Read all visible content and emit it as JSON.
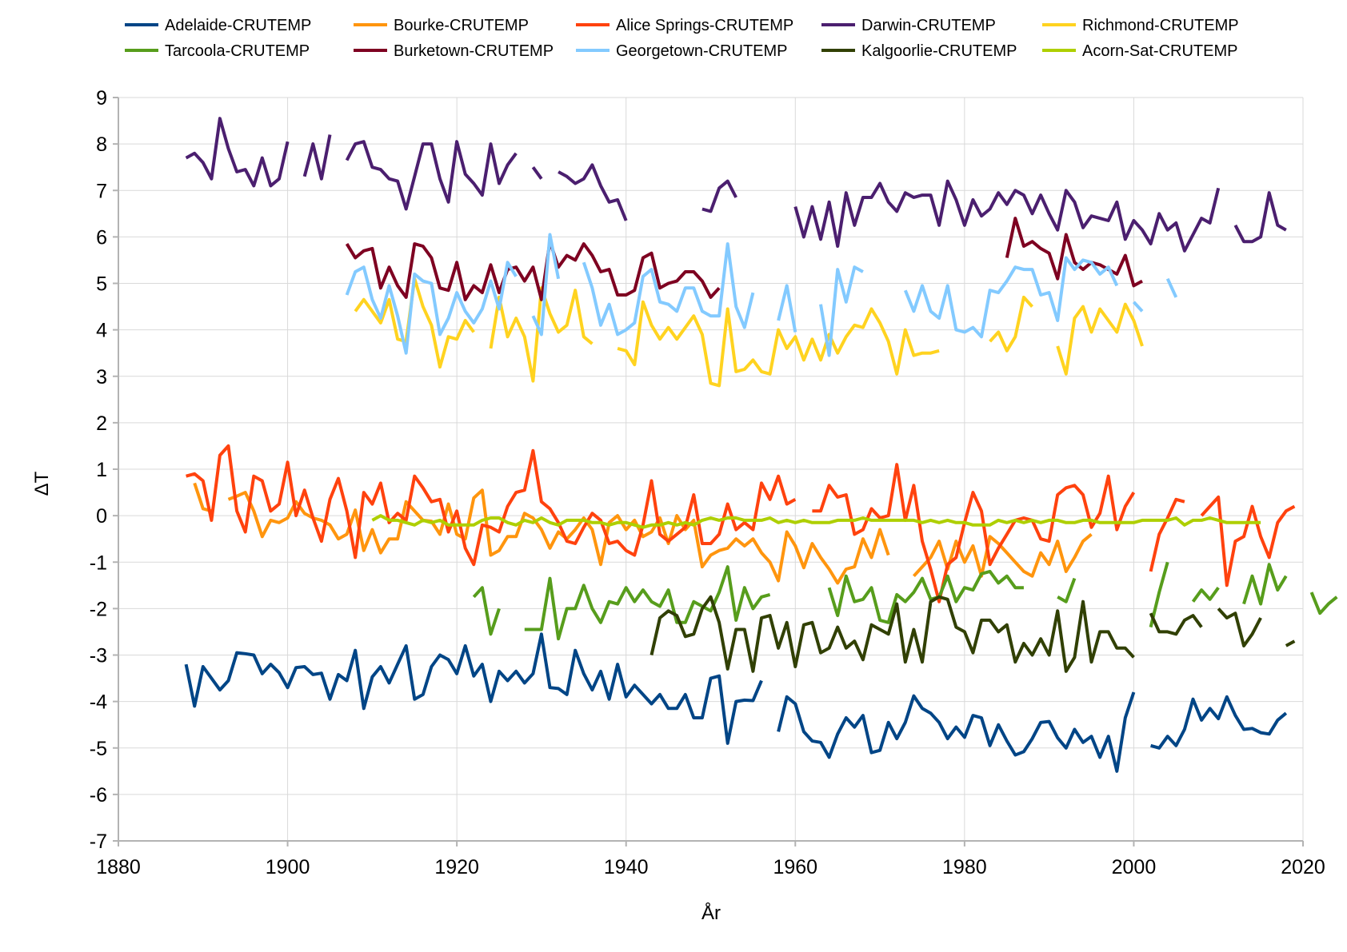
{
  "chart_data": {
    "type": "line",
    "xlabel": "År",
    "ylabel": "ΔT",
    "xlim": [
      1880,
      2020
    ],
    "ylim": [
      -7,
      9
    ],
    "x_ticks": [
      1880,
      1900,
      1920,
      1940,
      1960,
      1980,
      2000,
      2020
    ],
    "y_ticks": [
      9,
      8,
      7,
      6,
      5,
      4,
      3,
      2,
      1,
      0,
      -1,
      -2,
      -3,
      -4,
      -5,
      -6,
      -7
    ],
    "grid": true,
    "legend_position": "top",
    "series": [
      {
        "name": "Adelaide-CRUTEMP",
        "color": "#004586",
        "start": 1888,
        "values": [
          -3.2,
          -4.1,
          -3.25,
          -3.5,
          -3.75,
          -3.55,
          -2.95,
          -2.97,
          -3.0,
          -3.4,
          -3.2,
          -3.38,
          -3.7,
          -3.27,
          -3.25,
          -3.42,
          -3.39,
          -3.95,
          -3.42,
          -3.55,
          -2.9,
          -4.15,
          -3.47,
          -3.25,
          -3.6,
          -3.2,
          -2.8,
          -3.95,
          -3.85,
          -3.25,
          -3.0,
          -3.1,
          -3.4,
          -2.8,
          -3.45,
          -3.2,
          -4.0,
          -3.35,
          -3.55,
          -3.35,
          -3.6,
          -3.4,
          -2.55,
          -3.7,
          -3.72,
          -3.85,
          -2.9,
          -3.4,
          -3.75,
          -3.35,
          -3.95,
          -3.2,
          -3.9,
          -3.65,
          -3.85,
          -4.05,
          -3.85,
          -4.15,
          -4.15,
          -3.85,
          -4.35,
          -4.35,
          -3.5,
          -3.45,
          -4.9,
          -4.0,
          -3.97,
          -3.98,
          -3.55,
          null,
          -4.65,
          -3.9,
          -4.05,
          -4.65,
          -4.85,
          -4.88,
          -5.2,
          -4.7,
          -4.35,
          -4.55,
          -4.3,
          -5.1,
          -5.05,
          -4.45,
          -4.8,
          -4.45,
          -3.88,
          -4.15,
          -4.25,
          -4.45,
          -4.8,
          -4.55,
          -4.77,
          -4.3,
          -4.35,
          -4.95,
          -4.5,
          -4.85,
          -5.15,
          -5.08,
          -4.8,
          -4.45,
          -4.43,
          -4.78,
          -5.0,
          -4.6,
          -4.88,
          -4.75,
          -5.2,
          -4.75,
          -5.5,
          -4.35,
          -3.8,
          null,
          -4.95,
          -5.0,
          -4.75,
          -4.95,
          -4.6,
          -3.95,
          -4.4,
          -4.15,
          -4.37,
          -3.9,
          -4.3,
          -4.6,
          -4.58,
          -4.67,
          -4.7,
          -4.4,
          -4.25
        ]
      },
      {
        "name": "Bourke-CRUTEMP",
        "color": "#ff950e",
        "start": 1889,
        "values": [
          0.7,
          0.15,
          0.1,
          null,
          0.35,
          0.42,
          0.5,
          0.1,
          -0.45,
          -0.1,
          -0.15,
          -0.05,
          0.3,
          0.05,
          -0.05,
          -0.1,
          -0.2,
          -0.5,
          -0.4,
          0.12,
          -0.75,
          -0.3,
          -0.8,
          -0.5,
          -0.5,
          0.3,
          0.1,
          -0.1,
          -0.12,
          -0.4,
          0.25,
          -0.4,
          -0.5,
          0.38,
          0.55,
          -0.85,
          -0.75,
          -0.45,
          -0.45,
          0.05,
          -0.05,
          -0.3,
          -0.7,
          -0.35,
          -0.5,
          -0.3,
          -0.05,
          -0.3,
          -1.05,
          -0.15,
          0.0,
          -0.3,
          -0.1,
          -0.45,
          -0.35,
          -0.05,
          -0.6,
          0.0,
          -0.3,
          -0.1,
          -1.1,
          -0.85,
          -0.75,
          -0.7,
          -0.5,
          -0.65,
          -0.5,
          -0.8,
          -1.0,
          -1.4,
          -0.35,
          -0.65,
          -1.12,
          -0.6,
          -0.9,
          -1.15,
          -1.45,
          -1.15,
          -1.1,
          -0.5,
          -0.9,
          -0.3,
          -0.85,
          null,
          null,
          -1.3,
          -1.1,
          -0.9,
          -0.55,
          -1.15,
          -0.55,
          -1.0,
          -0.65,
          -1.3,
          -0.45,
          -0.6,
          -0.8,
          -1.0,
          -1.2,
          -1.3,
          -0.8,
          -1.05,
          -0.55,
          -1.2,
          -0.9,
          -0.55,
          -0.4
        ]
      },
      {
        "name": "Alice Springs-CRUTEMP",
        "color": "#ff420e",
        "start": 1888,
        "values": [
          0.85,
          0.9,
          0.75,
          -0.1,
          1.3,
          1.5,
          0.1,
          -0.35,
          0.85,
          0.75,
          0.1,
          0.25,
          1.15,
          0.0,
          0.55,
          -0.05,
          -0.55,
          0.35,
          0.8,
          0.1,
          -0.9,
          0.5,
          0.25,
          0.7,
          -0.15,
          0.05,
          -0.1,
          0.85,
          0.6,
          0.3,
          0.35,
          -0.35,
          0.1,
          -0.7,
          -1.05,
          -0.2,
          -0.25,
          -0.35,
          0.2,
          0.5,
          0.55,
          1.4,
          0.3,
          0.15,
          -0.15,
          -0.55,
          -0.6,
          -0.25,
          0.05,
          -0.1,
          -0.6,
          -0.55,
          -0.75,
          -0.85,
          -0.2,
          0.75,
          -0.4,
          -0.55,
          -0.4,
          -0.25,
          0.45,
          -0.6,
          -0.6,
          -0.4,
          0.25,
          -0.3,
          -0.15,
          -0.3,
          0.7,
          0.35,
          0.85,
          0.25,
          0.35,
          null,
          0.1,
          0.1,
          0.65,
          0.4,
          0.45,
          -0.4,
          -0.3,
          0.15,
          -0.05,
          0.0,
          1.1,
          -0.1,
          0.65,
          -0.55,
          -1.15,
          -1.85,
          -1.05,
          -0.9,
          -0.15,
          0.5,
          0.1,
          -1.05,
          -0.7,
          -0.4,
          -0.1,
          -0.05,
          -0.1,
          -0.5,
          -0.55,
          0.45,
          0.6,
          0.65,
          0.45,
          -0.25,
          0.05,
          0.85,
          -0.3,
          0.2,
          0.5,
          null,
          -1.2,
          -0.4,
          -0.05,
          0.35,
          0.3,
          null,
          0.0,
          0.2,
          0.4,
          -1.5,
          -0.55,
          -0.45,
          0.2,
          -0.45,
          -0.9,
          -0.15,
          0.1,
          0.2
        ]
      },
      {
        "name": "Darwin-CRUTEMP",
        "color": "#4b1f6f",
        "start": 1888,
        "values": [
          7.7,
          7.8,
          7.6,
          7.25,
          8.55,
          7.9,
          7.4,
          7.45,
          7.1,
          7.7,
          7.1,
          7.25,
          8.05,
          null,
          7.3,
          8.0,
          7.25,
          8.2,
          null,
          7.65,
          8.0,
          8.05,
          7.5,
          7.45,
          7.25,
          7.2,
          6.6,
          7.3,
          8.0,
          8.0,
          7.25,
          6.75,
          8.05,
          7.35,
          7.15,
          6.9,
          8.0,
          7.15,
          7.55,
          7.8,
          null,
          7.5,
          7.25,
          null,
          7.4,
          7.3,
          7.15,
          7.25,
          7.55,
          7.1,
          6.75,
          6.8,
          6.35,
          null,
          null,
          null,
          null,
          null,
          null,
          null,
          null,
          6.6,
          6.55,
          7.05,
          7.2,
          6.85,
          null,
          null,
          null,
          null,
          null,
          null,
          6.65,
          6.0,
          6.65,
          5.95,
          6.75,
          5.8,
          6.95,
          6.25,
          6.85,
          6.85,
          7.15,
          6.75,
          6.55,
          6.95,
          6.85,
          6.9,
          6.9,
          6.25,
          7.2,
          6.8,
          6.25,
          6.8,
          6.45,
          6.6,
          6.95,
          6.7,
          7.0,
          6.9,
          6.5,
          6.9,
          6.5,
          6.15,
          7.0,
          6.75,
          6.2,
          6.45,
          6.4,
          6.35,
          6.75,
          5.95,
          6.35,
          6.15,
          5.85,
          6.5,
          6.15,
          6.3,
          5.7,
          6.05,
          6.4,
          6.3,
          7.05,
          null,
          6.25,
          5.9,
          5.9,
          6.0,
          6.95,
          6.25,
          6.15
        ]
      },
      {
        "name": "Richmond-CRUTEMP",
        "color": "#ffd320",
        "start": 1908,
        "values": [
          4.4,
          4.65,
          4.4,
          4.15,
          4.65,
          3.8,
          3.75,
          5.1,
          4.5,
          4.1,
          3.2,
          3.85,
          3.8,
          4.2,
          3.95,
          null,
          3.6,
          4.7,
          3.85,
          4.25,
          3.85,
          2.9,
          4.9,
          4.35,
          3.95,
          4.1,
          4.85,
          3.85,
          3.7,
          null,
          null,
          3.6,
          3.55,
          3.25,
          4.6,
          4.1,
          3.8,
          4.05,
          3.8,
          4.05,
          4.3,
          3.9,
          2.85,
          2.8,
          4.45,
          3.1,
          3.15,
          3.35,
          3.1,
          3.05,
          4.0,
          3.6,
          3.85,
          3.35,
          3.8,
          3.35,
          3.9,
          3.5,
          3.85,
          4.1,
          4.05,
          4.45,
          4.15,
          3.75,
          3.05,
          4.0,
          3.45,
          3.5,
          3.5,
          3.55,
          null,
          null,
          null,
          null,
          null,
          3.75,
          3.95,
          3.55,
          3.85,
          4.7,
          4.5,
          null,
          null,
          3.65,
          3.05,
          4.25,
          4.5,
          3.95,
          4.45,
          4.2,
          3.95,
          4.55,
          4.2,
          3.65
        ]
      },
      {
        "name": "Tarcoola-CRUTEMP",
        "color": "#579d1c",
        "start": 1922,
        "values": [
          -1.75,
          -1.55,
          -2.55,
          -2.0,
          null,
          null,
          -2.45,
          -2.45,
          -2.45,
          -1.35,
          -2.65,
          -2.0,
          -2.0,
          -1.5,
          -2.0,
          -2.3,
          -1.85,
          -1.9,
          -1.55,
          -1.85,
          -1.6,
          -1.85,
          -1.95,
          -1.6,
          -2.3,
          -2.3,
          -1.85,
          -1.95,
          -2.05,
          -1.65,
          -1.1,
          -2.25,
          -1.55,
          -2.0,
          -1.75,
          -1.7,
          null,
          null,
          null,
          null,
          null,
          null,
          -1.55,
          -2.15,
          -1.3,
          -1.85,
          -1.8,
          -1.55,
          -2.25,
          -2.3,
          -1.7,
          -1.85,
          -1.65,
          -1.35,
          -1.8,
          -1.75,
          -1.3,
          -1.85,
          -1.55,
          -1.6,
          -1.25,
          -1.2,
          -1.45,
          -1.3,
          -1.55,
          -1.55,
          null,
          null,
          null,
          -1.75,
          -1.85,
          -1.35,
          null,
          null,
          null,
          null,
          null,
          null,
          null,
          null,
          -2.4,
          -1.65,
          -1.0,
          null,
          null,
          -1.85,
          -1.6,
          -1.8,
          -1.55,
          null,
          null,
          -1.9,
          -1.3,
          -1.9,
          -1.05,
          -1.6,
          -1.3,
          null,
          null,
          -1.65,
          -2.1,
          -1.9,
          -1.75
        ]
      },
      {
        "name": "Burketown-CRUTEMP",
        "color": "#7e0021",
        "start": 1907,
        "values": [
          5.85,
          5.55,
          5.7,
          5.75,
          4.9,
          5.35,
          4.95,
          4.7,
          5.85,
          5.8,
          5.55,
          4.9,
          4.85,
          5.45,
          4.65,
          4.95,
          4.8,
          5.4,
          4.8,
          5.3,
          5.35,
          5.05,
          5.35,
          4.65,
          5.9,
          5.35,
          5.6,
          5.5,
          5.85,
          5.6,
          5.25,
          5.3,
          4.75,
          4.75,
          4.85,
          5.55,
          5.65,
          4.9,
          5.0,
          5.05,
          5.25,
          5.25,
          5.05,
          4.7,
          4.9,
          null,
          null,
          null,
          null,
          null,
          null,
          null,
          null,
          null,
          null,
          null,
          null,
          null,
          null,
          null,
          null,
          null,
          null,
          null,
          null,
          null,
          null,
          null,
          null,
          null,
          null,
          null,
          null,
          null,
          null,
          null,
          null,
          null,
          5.55,
          6.4,
          5.8,
          5.9,
          5.75,
          5.65,
          5.1,
          6.05,
          5.45,
          5.3,
          5.45,
          5.4,
          5.3,
          5.2,
          5.6,
          4.95,
          5.05
        ]
      },
      {
        "name": "Georgetown-CRUTEMP",
        "color": "#83caff",
        "start": 1907,
        "values": [
          4.75,
          5.25,
          5.35,
          4.65,
          4.25,
          4.95,
          4.3,
          3.5,
          5.2,
          5.05,
          5.0,
          3.9,
          4.25,
          4.8,
          4.4,
          4.15,
          4.45,
          5.05,
          4.45,
          5.45,
          5.15,
          null,
          4.3,
          3.9,
          6.05,
          5.1,
          null,
          null,
          5.45,
          4.9,
          4.1,
          4.55,
          3.9,
          4.0,
          4.15,
          5.15,
          5.3,
          4.6,
          4.55,
          4.4,
          4.9,
          4.9,
          4.4,
          4.3,
          4.3,
          5.85,
          4.5,
          4.05,
          4.8,
          null,
          null,
          4.2,
          4.95,
          3.95,
          null,
          null,
          4.55,
          3.45,
          5.3,
          4.6,
          5.35,
          5.25,
          null,
          null,
          null,
          null,
          4.85,
          4.4,
          4.95,
          4.4,
          4.25,
          4.95,
          4.0,
          3.95,
          4.05,
          3.85,
          4.85,
          4.8,
          5.05,
          5.35,
          5.3,
          5.3,
          4.75,
          4.8,
          4.2,
          5.55,
          5.3,
          5.5,
          5.45,
          5.2,
          5.35,
          4.95,
          null,
          4.6,
          4.4,
          null,
          null,
          5.1,
          4.7
        ]
      },
      {
        "name": "Kalgoorlie-CRUTEMP",
        "color": "#314004",
        "start": 1943,
        "values": [
          -3.0,
          -2.2,
          -2.05,
          -2.15,
          -2.6,
          -2.55,
          -2.0,
          -1.75,
          -2.3,
          -3.3,
          -2.45,
          -2.45,
          -3.35,
          -2.2,
          -2.15,
          -2.85,
          -2.3,
          -3.25,
          -2.35,
          -2.3,
          -2.95,
          -2.85,
          -2.4,
          -2.85,
          -2.7,
          -3.1,
          -2.35,
          -2.45,
          -2.55,
          -1.9,
          -3.15,
          -2.45,
          -3.15,
          -1.85,
          -1.75,
          -1.8,
          -2.4,
          -2.5,
          -2.95,
          -2.25,
          -2.25,
          -2.5,
          -2.35,
          -3.15,
          -2.75,
          -3.0,
          -2.65,
          -3.0,
          -2.05,
          -3.35,
          -3.05,
          -1.85,
          -3.15,
          -2.5,
          -2.5,
          -2.85,
          -2.85,
          -3.05,
          null,
          -2.1,
          -2.5,
          -2.5,
          -2.55,
          -2.25,
          -2.15,
          -2.4,
          null,
          -2.0,
          -2.2,
          -2.1,
          -2.8,
          -2.55,
          -2.2,
          null,
          null,
          -2.8,
          -2.7
        ]
      },
      {
        "name": "Acorn-Sat-CRUTEMP",
        "color": "#aecf00",
        "start": 1910,
        "values": [
          -0.1,
          0.0,
          -0.1,
          -0.1,
          -0.15,
          -0.2,
          -0.1,
          -0.15,
          -0.1,
          -0.2,
          -0.2,
          -0.2,
          -0.2,
          -0.1,
          -0.05,
          -0.05,
          -0.15,
          -0.2,
          -0.1,
          -0.15,
          -0.05,
          -0.15,
          -0.2,
          -0.1,
          -0.1,
          -0.1,
          -0.15,
          -0.15,
          -0.2,
          -0.15,
          -0.15,
          -0.2,
          -0.25,
          -0.2,
          -0.2,
          -0.15,
          -0.2,
          -0.15,
          -0.2,
          -0.1,
          -0.05,
          -0.1,
          -0.05,
          -0.05,
          -0.1,
          -0.1,
          -0.1,
          -0.05,
          -0.15,
          -0.1,
          -0.15,
          -0.1,
          -0.15,
          -0.15,
          -0.15,
          -0.1,
          -0.1,
          -0.1,
          -0.05,
          -0.1,
          -0.1,
          -0.1,
          -0.1,
          -0.1,
          -0.1,
          -0.15,
          -0.1,
          -0.15,
          -0.1,
          -0.15,
          -0.15,
          -0.2,
          -0.2,
          -0.2,
          -0.1,
          -0.15,
          -0.1,
          -0.15,
          -0.1,
          -0.15,
          -0.1,
          -0.1,
          -0.15,
          -0.15,
          -0.1,
          -0.1,
          -0.15,
          -0.15,
          -0.15,
          -0.15,
          -0.15,
          -0.1,
          -0.1,
          -0.1,
          -0.1,
          -0.05,
          -0.2,
          -0.1,
          -0.1,
          -0.05,
          -0.1,
          -0.15,
          -0.15,
          -0.15,
          -0.15,
          -0.15
        ]
      }
    ]
  }
}
